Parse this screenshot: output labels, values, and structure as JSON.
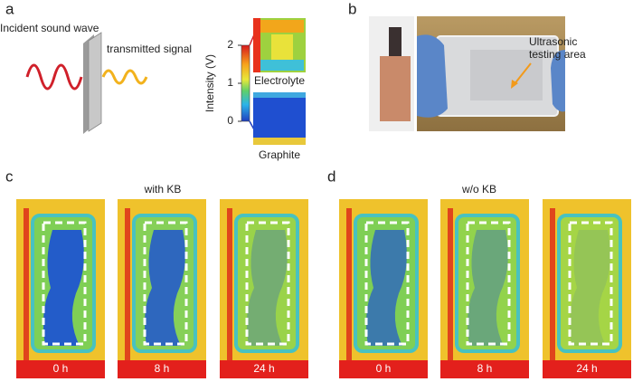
{
  "panel_a": {
    "letter": "a",
    "incident": "Incident sound wave",
    "transmitted": "transmitted signal",
    "colorbar": {
      "label": "Intensity (V)",
      "range": [
        0,
        2
      ],
      "ticks": [
        0,
        1,
        2
      ]
    },
    "top_image": "Electrolyte",
    "bottom_image": "Graphite"
  },
  "panel_b": {
    "letter": "b",
    "annotation": [
      "Ultrasonic",
      "testing area"
    ]
  },
  "panel_c": {
    "letter": "c",
    "title": "with KB",
    "times": [
      "0 h",
      "8 h",
      "24 h"
    ]
  },
  "panel_d": {
    "letter": "d",
    "title": "w/o KB",
    "times": [
      "0 h",
      "8 h",
      "24 h"
    ]
  }
}
